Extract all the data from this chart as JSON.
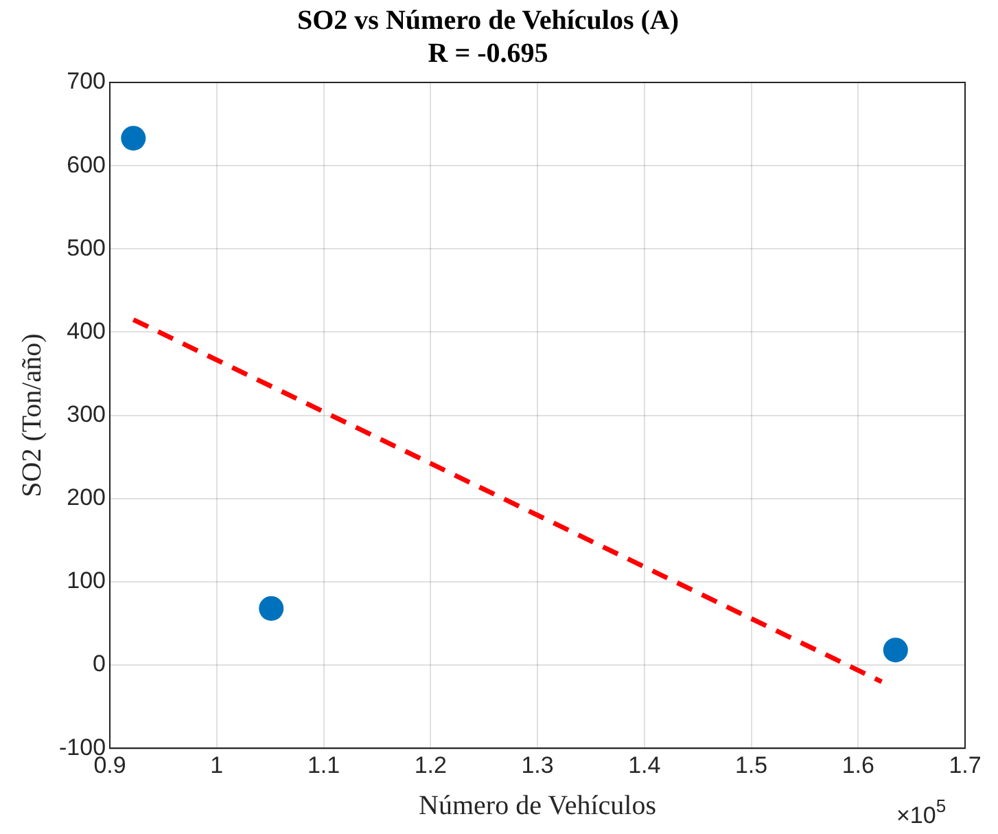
{
  "chart_data": {
    "type": "scatter",
    "title": "SO2 vs Número de Vehículos (A)",
    "subtitle": "R = -0.695",
    "xlabel": "Número de Vehículos",
    "ylabel": "SO2 (Ton/año)",
    "x": [
      0.922,
      1.051,
      1.635
    ],
    "series": [
      {
        "color": "#0072bd",
        "values": [
          633,
          68,
          18
        ],
        "marker": "circle"
      },
      {
        "type": "line",
        "color": "#ff0000",
        "x": [
          0.922,
          1.622
        ],
        "values": [
          415,
          -20
        ],
        "line_style": "dashed",
        "marker": "none"
      }
    ],
    "xlim": [
      0.9,
      1.7
    ],
    "xticks": [
      0.9,
      1,
      1.1,
      1.2,
      1.3,
      1.4,
      1.5,
      1.6,
      1.7
    ],
    "ylim": [
      -100,
      700
    ],
    "yticks": [
      -100,
      0,
      100,
      200,
      300,
      400,
      500,
      600,
      700
    ],
    "grid": true,
    "legend": false,
    "annotations": [
      "×10$^{5}$"
    ]
  }
}
